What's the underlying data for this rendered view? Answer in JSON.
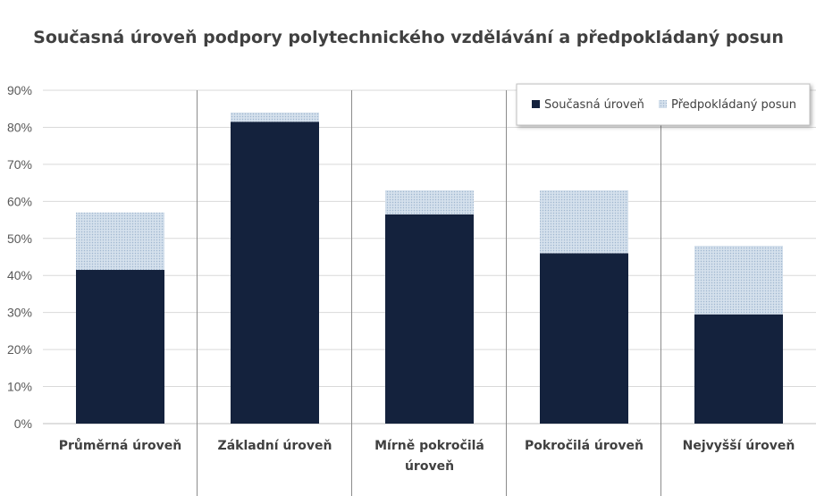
{
  "chart_data": {
    "type": "bar",
    "stacked": true,
    "title": "Současná úroveň podpory polytechnického vzdělávání a předpokládaný posun",
    "categories": [
      "Průměrná úroveň",
      "Základní úroveň",
      "Mírně pokročilá úroveň",
      "Pokročilá úroveň",
      "Nejvyšší úroveň"
    ],
    "series": [
      {
        "name": "Současná úroveň",
        "values": [
          41.5,
          81.5,
          56.5,
          46,
          29.5
        ],
        "color": "#14223d"
      },
      {
        "name": "Předpokládaný posun",
        "values": [
          15.5,
          2.5,
          6.5,
          17,
          18.5
        ],
        "color": "#c6d5e6"
      }
    ],
    "ylim": [
      0,
      90
    ],
    "yticks": [
      "0%",
      "10%",
      "20%",
      "30%",
      "40%",
      "50%",
      "60%",
      "70%",
      "80%",
      "90%"
    ],
    "grid": true,
    "legend": "top-right"
  }
}
